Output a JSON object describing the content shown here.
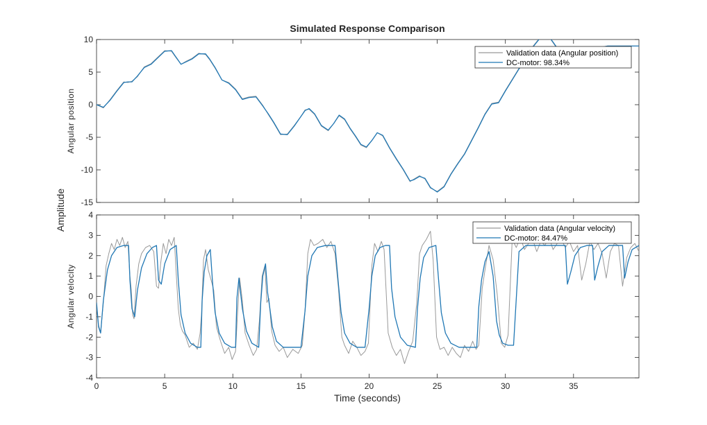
{
  "figure": {
    "title": "Simulated Response Comparison",
    "shared_ylabel": "Amplitude",
    "xlabel": "Time (seconds)"
  },
  "colors": {
    "validation": "#999999",
    "model": "#1f77b4",
    "axes": "#262626",
    "grid": "#e6e6e6"
  },
  "chart_data": [
    {
      "type": "line",
      "title": "Simulated Response Comparison",
      "ylabel": "Angular position",
      "xlabel": "",
      "xlim": [
        0,
        39.8
      ],
      "ylim": [
        -15,
        10
      ],
      "yticks": [
        10,
        5,
        0,
        -5,
        -10,
        -15
      ],
      "xticks": [
        0,
        5,
        10,
        15,
        20,
        25,
        30,
        35
      ],
      "show_xtick_labels": false,
      "grid": false,
      "legend_placement": "top-right",
      "series": [
        {
          "name": "Validation data (Angular position)",
          "role": "validation",
          "x": [
            0,
            0.5,
            1,
            1.5,
            2,
            2.3,
            2.6,
            3,
            3.5,
            4,
            4.5,
            5,
            5.5,
            5.8,
            6.2,
            6.6,
            7,
            7.5,
            8,
            8.3,
            8.7,
            9.2,
            9.7,
            10.2,
            10.7,
            11.2,
            11.7,
            12.2,
            12.6,
            13,
            13.5,
            14,
            14.5,
            15,
            15.3,
            15.6,
            16,
            16.5,
            17,
            17.4,
            17.8,
            18.2,
            18.6,
            19,
            19.4,
            19.8,
            20.2,
            20.6,
            21,
            21.5,
            22,
            22.5,
            23,
            23.3,
            23.7,
            24.1,
            24.5,
            25,
            25.5,
            26,
            26.5,
            27,
            27.5,
            28,
            28.5,
            29,
            29.5,
            30,
            30.5,
            31,
            31.5,
            32,
            32.5,
            33,
            33.5,
            34,
            34.5,
            35,
            35.5,
            36,
            36.5,
            37,
            37.5,
            38,
            38.5,
            39,
            39.8
          ],
          "y": [
            0,
            -0.5,
            0.8,
            2.2,
            3.5,
            3.4,
            3.6,
            4.3,
            5.8,
            6.3,
            7.3,
            8.3,
            8.2,
            7.3,
            6.2,
            6.7,
            7.1,
            7.9,
            7.7,
            6.9,
            5.6,
            3.8,
            3.4,
            2.4,
            0.9,
            1.2,
            1.3,
            -0.1,
            -1.5,
            -2.8,
            -4.6,
            -4.5,
            -3.2,
            -1.8,
            -0.8,
            -0.7,
            -1.5,
            -3.3,
            -4.0,
            -2.9,
            -1.7,
            -2.3,
            -3.7,
            -4.9,
            -6.2,
            -6.6,
            -5.5,
            -4.3,
            -4.8,
            -6.7,
            -8.4,
            -10.0,
            -11.8,
            -11.4,
            -10.9,
            -11.4,
            -12.8,
            -13.3,
            -12.5,
            -10.6,
            -9.0,
            -7.5,
            -5.5,
            -3.5,
            -1.4,
            0.2,
            0.4,
            2.2,
            3.9,
            5.6,
            7.0,
            8.9,
            10.2,
            11.0,
            9.5,
            8.0,
            7.5,
            7.7,
            7.9,
            8.2,
            8.6,
            8.8,
            9.0,
            9.0,
            9.0,
            9.0,
            9.0
          ]
        },
        {
          "name": "DC-motor: 98.34%",
          "role": "model",
          "x": [
            0,
            0.5,
            1,
            1.5,
            2,
            2.3,
            2.6,
            3,
            3.5,
            4,
            4.5,
            5,
            5.5,
            5.8,
            6.2,
            6.6,
            7,
            7.5,
            8,
            8.3,
            8.7,
            9.2,
            9.7,
            10.2,
            10.7,
            11.2,
            11.7,
            12.2,
            12.6,
            13,
            13.5,
            14,
            14.5,
            15,
            15.3,
            15.6,
            16,
            16.5,
            17,
            17.4,
            17.8,
            18.2,
            18.6,
            19,
            19.4,
            19.8,
            20.2,
            20.6,
            21,
            21.5,
            22,
            22.5,
            23,
            23.3,
            23.7,
            24.1,
            24.5,
            25,
            25.5,
            26,
            26.5,
            27,
            27.5,
            28,
            28.5,
            29,
            29.5,
            30,
            30.5,
            31,
            31.5,
            32,
            32.5,
            33,
            33.5,
            34,
            34.5,
            35,
            35.5,
            36,
            36.5,
            37,
            37.5,
            38,
            38.5,
            39,
            39.8
          ],
          "y": [
            0,
            -0.4,
            0.7,
            2.1,
            3.4,
            3.5,
            3.5,
            4.4,
            5.7,
            6.2,
            7.2,
            8.2,
            8.3,
            7.4,
            6.2,
            6.6,
            7.0,
            7.8,
            7.8,
            7.0,
            5.7,
            3.8,
            3.3,
            2.3,
            0.8,
            1.1,
            1.2,
            -0.2,
            -1.4,
            -2.7,
            -4.5,
            -4.6,
            -3.3,
            -1.8,
            -0.9,
            -0.6,
            -1.4,
            -3.2,
            -3.9,
            -2.9,
            -1.6,
            -2.2,
            -3.6,
            -4.8,
            -6.1,
            -6.5,
            -5.5,
            -4.3,
            -4.7,
            -6.6,
            -8.3,
            -9.9,
            -11.7,
            -11.5,
            -11.0,
            -11.3,
            -12.7,
            -13.4,
            -12.6,
            -10.7,
            -9.1,
            -7.6,
            -5.6,
            -3.6,
            -1.5,
            0.1,
            0.3,
            2.1,
            3.8,
            5.5,
            6.9,
            8.8,
            10.1,
            11.0,
            9.6,
            8.1,
            7.6,
            7.7,
            7.9,
            8.2,
            8.6,
            8.8,
            9.0,
            9.0,
            9.0,
            9.0,
            9.0
          ]
        }
      ]
    },
    {
      "type": "line",
      "title": "",
      "ylabel": "Angular velocity",
      "xlabel": "Time (seconds)",
      "xlim": [
        0,
        39.8
      ],
      "ylim": [
        -4,
        4
      ],
      "yticks": [
        4,
        3,
        2,
        1,
        0,
        -1,
        -2,
        -3,
        -4
      ],
      "xticks": [
        0,
        5,
        10,
        15,
        20,
        25,
        30,
        35
      ],
      "show_xtick_labels": true,
      "grid": false,
      "legend_placement": "top-right",
      "series": [
        {
          "name": "Validation data (Angular velocity)",
          "role": "validation",
          "x": [
            0,
            0.15,
            0.3,
            0.5,
            0.7,
            0.9,
            1.1,
            1.3,
            1.5,
            1.7,
            1.9,
            2.1,
            2.3,
            2.45,
            2.55,
            2.65,
            2.75,
            2.9,
            3.1,
            3.3,
            3.6,
            3.9,
            4.2,
            4.4,
            4.55,
            4.7,
            4.9,
            5.1,
            5.3,
            5.5,
            5.7,
            5.85,
            6.0,
            6.15,
            6.3,
            6.5,
            6.8,
            7.1,
            7.4,
            7.6,
            7.7,
            7.85,
            8.0,
            8.2,
            8.45,
            8.6,
            8.8,
            9.1,
            9.4,
            9.7,
            9.95,
            10.2,
            10.35,
            10.5,
            10.7,
            10.9,
            11.2,
            11.5,
            11.75,
            11.95,
            12.15,
            12.35,
            12.5,
            12.65,
            12.85,
            13.1,
            13.4,
            13.7,
            14.0,
            14.4,
            14.8,
            15.1,
            15.3,
            15.5,
            15.7,
            15.95,
            16.25,
            16.6,
            16.9,
            17.2,
            17.5,
            17.75,
            18.0,
            18.2,
            18.5,
            18.8,
            19.1,
            19.4,
            19.7,
            19.95,
            20.2,
            20.4,
            20.65,
            20.9,
            21.1,
            21.4,
            21.7,
            22.0,
            22.3,
            22.6,
            22.9,
            23.2,
            23.5,
            23.7,
            23.9,
            24.2,
            24.5,
            24.7,
            24.95,
            25.2,
            25.5,
            25.8,
            26.1,
            26.4,
            26.7,
            27.0,
            27.3,
            27.6,
            27.85,
            28.05,
            28.3,
            28.55,
            28.8,
            29.1,
            29.4,
            29.7,
            29.95,
            30.2,
            30.5,
            30.8,
            31.1,
            31.4,
            31.7,
            32.0,
            32.3,
            32.6,
            32.9,
            33.2,
            33.5,
            33.8,
            34.1,
            34.4,
            34.7,
            35.0,
            35.3,
            35.6,
            35.9,
            36.2,
            36.5,
            36.8,
            37.1,
            37.4,
            37.7,
            38.0,
            38.3,
            38.6,
            38.9,
            39.2,
            39.5,
            39.8
          ],
          "y": [
            -0.5,
            -1.4,
            -1.8,
            -0.3,
            1.5,
            2.1,
            2.6,
            2.3,
            2.8,
            2.5,
            2.9,
            2.4,
            2.7,
            1.0,
            0.3,
            -0.9,
            -1.1,
            0.5,
            1.6,
            2.1,
            2.4,
            2.5,
            2.2,
            0.5,
            0.4,
            1.6,
            2.6,
            2.1,
            2.8,
            2.5,
            2.9,
            1.1,
            -0.6,
            -1.4,
            -1.7,
            -1.9,
            -2.5,
            -2.3,
            -2.6,
            -1.8,
            -0.9,
            1.8,
            2.3,
            1.3,
            0.7,
            0.3,
            -1.5,
            -2.2,
            -2.8,
            -2.5,
            -3.1,
            -2.7,
            -0.8,
            0.9,
            -0.2,
            -1.8,
            -2.4,
            -2.9,
            -2.6,
            -1.2,
            1.0,
            1.5,
            -0.3,
            -0.1,
            -1.7,
            -2.4,
            -2.7,
            -2.5,
            -3.0,
            -2.6,
            -2.8,
            -2.4,
            -0.7,
            2.1,
            2.8,
            2.5,
            2.6,
            2.8,
            2.4,
            2.7,
            2.1,
            0.4,
            -2.0,
            -2.4,
            -2.8,
            -2.2,
            -2.5,
            -2.9,
            -2.7,
            -2.3,
            1.5,
            2.6,
            2.2,
            2.7,
            2.3,
            -1.8,
            -2.5,
            -2.9,
            -2.6,
            -3.3,
            -2.7,
            -2.2,
            -0.3,
            2.1,
            2.5,
            2.8,
            3.2,
            1.8,
            -2.0,
            -2.6,
            -2.5,
            -2.9,
            -2.5,
            -2.8,
            -3.0,
            -2.4,
            -2.7,
            -2.2,
            -2.6,
            -2.4,
            0.4,
            1.5,
            2.5,
            1.8,
            0.1,
            -2.3,
            -2.5,
            -1.9,
            2.8,
            2.4,
            2.9,
            2.3,
            2.6,
            2.8,
            2.2,
            2.7,
            2.5,
            2.9,
            2.3,
            2.6,
            2.8,
            2.4,
            2.7,
            2.2,
            2.5,
            0.8,
            1.6,
            2.7,
            2.3,
            2.6,
            2.1,
            0.9,
            2.2,
            2.6,
            2.5,
            0.5,
            1.9,
            2.4,
            2.6,
            2.2
          ],
          "y_note": ""
        },
        {
          "name": "DC-motor: 84.47%",
          "role": "model",
          "x": [
            0,
            0.15,
            0.3,
            0.5,
            0.8,
            1.1,
            1.5,
            2.0,
            2.35,
            2.45,
            2.6,
            2.8,
            3.0,
            3.3,
            3.7,
            4.1,
            4.4,
            4.55,
            4.75,
            5.0,
            5.4,
            5.85,
            6.0,
            6.2,
            6.5,
            6.9,
            7.4,
            7.65,
            7.75,
            7.9,
            8.1,
            8.35,
            8.5,
            8.7,
            9.0,
            9.4,
            9.9,
            10.2,
            10.3,
            10.45,
            10.7,
            11.0,
            11.4,
            11.9,
            12.05,
            12.2,
            12.4,
            12.55,
            12.7,
            12.9,
            13.2,
            13.7,
            14.5,
            15.0,
            15.3,
            15.5,
            15.8,
            16.2,
            16.8,
            17.5,
            17.75,
            17.95,
            18.2,
            18.6,
            19.1,
            19.7,
            20.0,
            20.2,
            20.45,
            20.8,
            21.2,
            21.5,
            21.65,
            21.9,
            22.3,
            22.8,
            23.4,
            23.55,
            23.75,
            24.0,
            24.4,
            24.9,
            25.1,
            25.3,
            25.6,
            26.0,
            26.6,
            27.3,
            27.9,
            28.05,
            28.25,
            28.5,
            28.8,
            29.1,
            29.35,
            29.55,
            29.8,
            30.2,
            30.6,
            31.0,
            31.5,
            32.0,
            32.5,
            33.0,
            33.5,
            34.0,
            34.4,
            34.55,
            34.8,
            35.1,
            35.5,
            36.0,
            36.4,
            36.55,
            36.8,
            37.1,
            37.6,
            38.1,
            38.6,
            38.75,
            39.0,
            39.3,
            39.8
          ],
          "y": [
            -0.3,
            -1.5,
            -1.8,
            -0.2,
            1.3,
            2.0,
            2.4,
            2.5,
            2.5,
            0.8,
            -0.6,
            -1.0,
            0.3,
            1.4,
            2.1,
            2.4,
            2.5,
            0.8,
            0.6,
            1.6,
            2.3,
            2.5,
            0.8,
            -0.9,
            -1.8,
            -2.3,
            -2.5,
            -2.5,
            -0.2,
            1.2,
            2.0,
            2.3,
            0.8,
            -0.8,
            -1.8,
            -2.3,
            -2.5,
            -2.5,
            -0.1,
            0.9,
            -0.6,
            -1.7,
            -2.3,
            -2.5,
            -0.3,
            1.0,
            1.6,
            0.2,
            -0.5,
            -1.5,
            -2.2,
            -2.5,
            -2.5,
            -2.5,
            -0.7,
            1.0,
            2.0,
            2.4,
            2.5,
            2.5,
            0.6,
            -0.8,
            -1.8,
            -2.3,
            -2.5,
            -2.5,
            -0.6,
            1.0,
            2.0,
            2.4,
            2.5,
            2.5,
            0.4,
            -1.0,
            -2.0,
            -2.4,
            -2.5,
            -0.6,
            0.9,
            1.9,
            2.4,
            2.5,
            0.8,
            -0.8,
            -1.8,
            -2.3,
            -2.5,
            -2.5,
            -2.5,
            -0.5,
            0.8,
            1.7,
            2.2,
            1.0,
            -1.2,
            -1.9,
            -2.3,
            -2.4,
            -2.4,
            2.2,
            2.5,
            2.5,
            2.5,
            2.5,
            2.5,
            2.5,
            2.5,
            0.6,
            1.2,
            2.0,
            2.4,
            2.5,
            2.5,
            0.8,
            1.5,
            2.2,
            2.5,
            2.5,
            2.5,
            0.9,
            1.7,
            2.3,
            2.5
          ]
        }
      ]
    }
  ]
}
